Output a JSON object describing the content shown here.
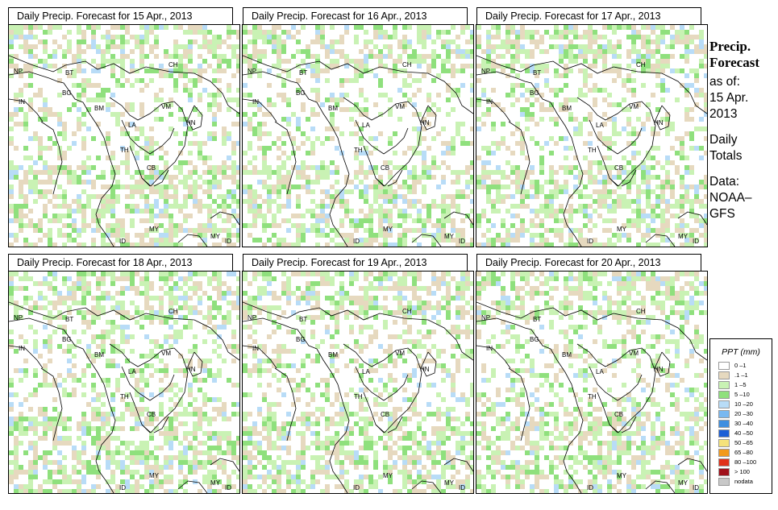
{
  "panels": [
    {
      "title": "Daily Precip. Forecast for  15 Apr., 2013"
    },
    {
      "title": "Daily Precip. Forecast for  16 Apr., 2013"
    },
    {
      "title": "Daily Precip. Forecast for  17 Apr., 2013"
    },
    {
      "title": "Daily Precip. Forecast for  18 Apr., 2013"
    },
    {
      "title": "Daily Precip. Forecast for  19 Apr., 2013"
    },
    {
      "title": "Daily Precip. Forecast for  20 Apr., 2013"
    }
  ],
  "country_labels": [
    "NP",
    "BT",
    "BG",
    "IN",
    "BM",
    "CH",
    "VM",
    "HN",
    "LA",
    "TH",
    "CB",
    "MY",
    "ID",
    "MY",
    "ID"
  ],
  "sidebar": {
    "heading_line1": "Precip.",
    "heading_line2": "Forecast",
    "asof_line1": "as of:",
    "asof_line2": "15 Apr.",
    "asof_line3": "2013",
    "totals_line1": "Daily",
    "totals_line2": "Totals",
    "data_line1": "Data:",
    "data_line2": "NOAA–",
    "data_line3": "GFS"
  },
  "legend": {
    "title": "PPT (mm)",
    "items": [
      {
        "label": "0 –1",
        "color": "#ffffff"
      },
      {
        "label": ".1 –1",
        "color": "#e6d9bf"
      },
      {
        "label": "1 –5",
        "color": "#c9f2b4"
      },
      {
        "label": "5 –10",
        "color": "#8fe07d"
      },
      {
        "label": "10 –20",
        "color": "#b8dcf7"
      },
      {
        "label": "20 –30",
        "color": "#79b8f0"
      },
      {
        "label": "30 –40",
        "color": "#3f8fe0"
      },
      {
        "label": "40 –50",
        "color": "#1c5fd6"
      },
      {
        "label": "50 –65",
        "color": "#f5e27a"
      },
      {
        "label": "65 –80",
        "color": "#f29a1d"
      },
      {
        "label": "80 –100",
        "color": "#e0311a"
      },
      {
        "label": "> 100",
        "color": "#a0101a"
      },
      {
        "label": "nodata",
        "color": "#c8c8c8"
      }
    ]
  }
}
